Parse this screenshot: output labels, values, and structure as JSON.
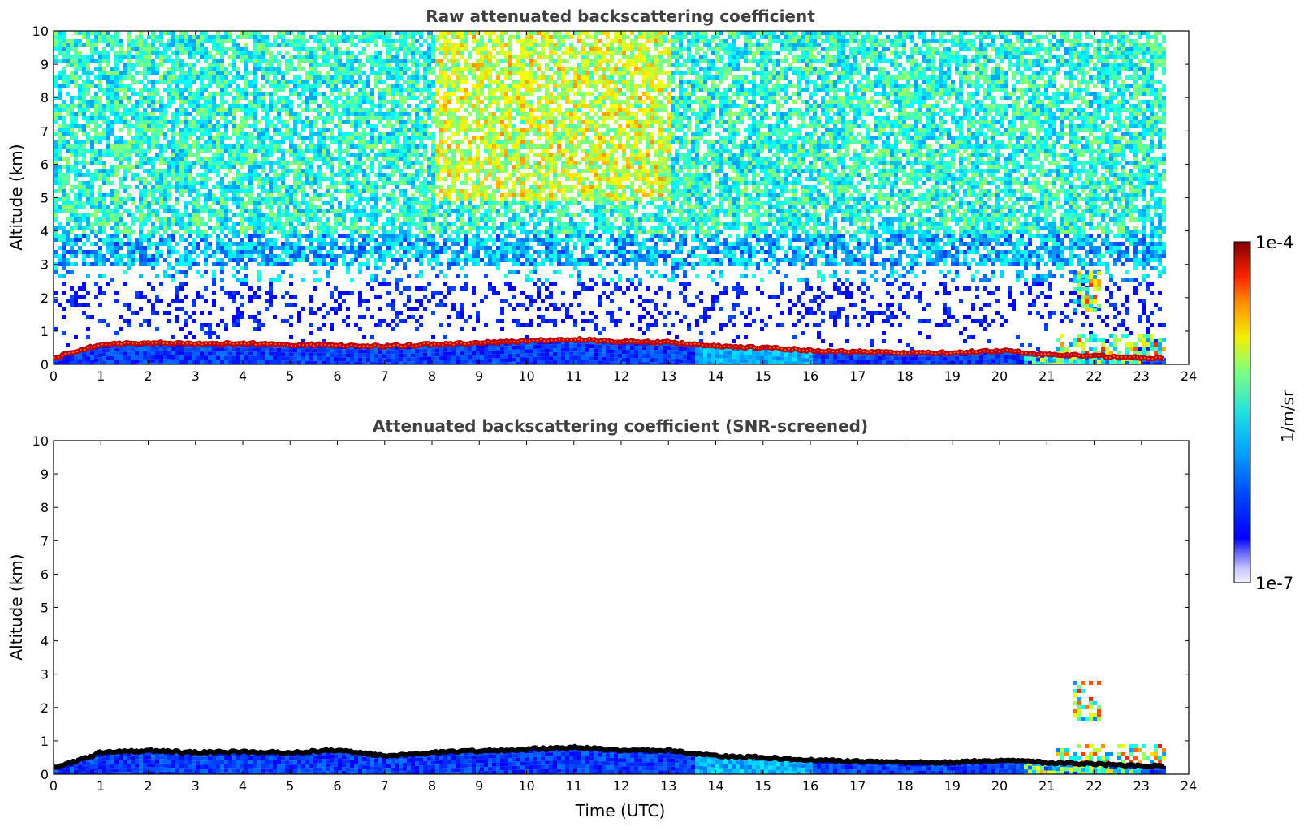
{
  "chart_data": [
    {
      "type": "heatmap",
      "title": "Raw attenuated backscattering coefficient",
      "xlabel": "",
      "ylabel": "Altitude (km)",
      "xlim": [
        0,
        24
      ],
      "ylim": [
        0,
        10
      ],
      "xticks": [
        "0",
        "1",
        "2",
        "3",
        "4",
        "5",
        "6",
        "7",
        "8",
        "9",
        "10",
        "11",
        "12",
        "13",
        "14",
        "15",
        "16",
        "17",
        "18",
        "19",
        "20",
        "21",
        "22",
        "23",
        "24"
      ],
      "yticks": [
        "0",
        "1",
        "2",
        "3",
        "4",
        "5",
        "6",
        "7",
        "8",
        "9",
        "10"
      ],
      "data_end_hour": 23.5,
      "boundary_layer_top_km": [
        [
          0,
          0.2
        ],
        [
          0.5,
          0.4
        ],
        [
          1,
          0.6
        ],
        [
          2,
          0.65
        ],
        [
          3,
          0.62
        ],
        [
          4,
          0.63
        ],
        [
          5,
          0.6
        ],
        [
          6,
          0.58
        ],
        [
          7,
          0.55
        ],
        [
          8,
          0.6
        ],
        [
          9,
          0.65
        ],
        [
          10,
          0.7
        ],
        [
          11,
          0.75
        ],
        [
          12,
          0.68
        ],
        [
          13,
          0.68
        ],
        [
          14,
          0.55
        ],
        [
          15,
          0.5
        ],
        [
          16,
          0.42
        ],
        [
          17,
          0.38
        ],
        [
          18,
          0.35
        ],
        [
          19,
          0.35
        ],
        [
          20,
          0.42
        ],
        [
          21,
          0.3
        ],
        [
          22,
          0.25
        ],
        [
          23,
          0.2
        ],
        [
          23.5,
          0.2
        ]
      ],
      "residual_layers_km": [
        {
          "x_range": [
            21.5,
            22.1
          ],
          "alt_range": [
            1.6,
            2.8
          ]
        },
        {
          "x_range": [
            21.2,
            23.5
          ],
          "alt_range": [
            0.3,
            0.9
          ]
        }
      ],
      "upper_noise_enhanced_hours": [
        8,
        13
      ]
    },
    {
      "type": "heatmap",
      "title": "Attenuated backscattering coefficient (SNR-screened)",
      "xlabel": "Time (UTC)",
      "ylabel": "Altitude (km)",
      "xlim": [
        0,
        24
      ],
      "ylim": [
        0,
        10
      ],
      "xticks": [
        "0",
        "1",
        "2",
        "3",
        "4",
        "5",
        "6",
        "7",
        "8",
        "9",
        "10",
        "11",
        "12",
        "13",
        "14",
        "15",
        "16",
        "17",
        "18",
        "19",
        "20",
        "21",
        "22",
        "23",
        "24"
      ],
      "yticks": [
        "0",
        "1",
        "2",
        "3",
        "4",
        "5",
        "6",
        "7",
        "8",
        "9",
        "10"
      ],
      "data_end_hour": 23.5,
      "boundary_layer_top_km": [
        [
          0,
          0.2
        ],
        [
          0.5,
          0.4
        ],
        [
          1,
          0.65
        ],
        [
          2,
          0.7
        ],
        [
          3,
          0.65
        ],
        [
          4,
          0.67
        ],
        [
          5,
          0.65
        ],
        [
          6,
          0.72
        ],
        [
          7,
          0.55
        ],
        [
          8,
          0.65
        ],
        [
          9,
          0.7
        ],
        [
          10,
          0.75
        ],
        [
          11,
          0.8
        ],
        [
          12,
          0.72
        ],
        [
          13,
          0.72
        ],
        [
          14,
          0.55
        ],
        [
          15,
          0.5
        ],
        [
          16,
          0.42
        ],
        [
          17,
          0.38
        ],
        [
          18,
          0.35
        ],
        [
          19,
          0.35
        ],
        [
          20,
          0.42
        ],
        [
          21,
          0.35
        ],
        [
          22,
          0.3
        ],
        [
          23,
          0.25
        ],
        [
          23.5,
          0.25
        ]
      ],
      "residual_layers_km": [
        {
          "x_range": [
            21.5,
            22.1
          ],
          "alt_range": [
            1.6,
            2.8
          ]
        },
        {
          "x_range": [
            21.2,
            23.5
          ],
          "alt_range": [
            0.3,
            0.9
          ]
        }
      ]
    }
  ],
  "colorbar": {
    "label": "1/m/sr",
    "max_label": "1e-4",
    "min_label": "1e-7",
    "colormap": "jet",
    "scale": "log",
    "range": [
      1e-07,
      0.0001
    ]
  },
  "colors": {
    "boundary_line_raw": "#c00000",
    "boundary_line_screened": "#000000",
    "title_color": "#404040"
  }
}
